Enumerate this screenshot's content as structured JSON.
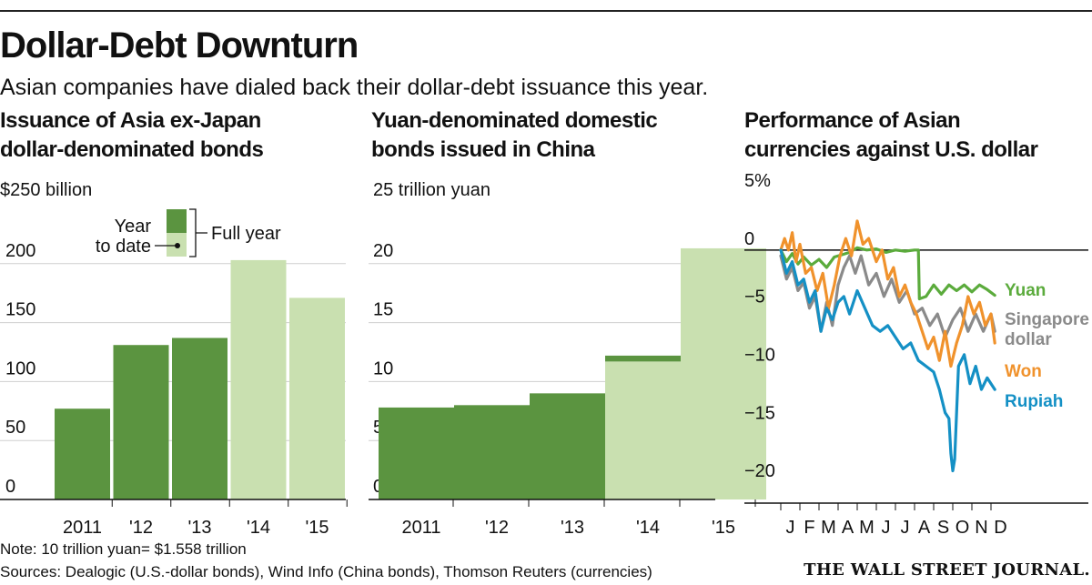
{
  "title": "Dollar-Debt Downturn",
  "subtitle": "Asian companies have dialed back their dollar-debt issuance this year.",
  "notes": {
    "note": "Note: 10 trillion yuan= $1.558 trillion",
    "sources": "Sources: Dealogic (U.S.-dollar bonds), Wind Info (China bonds), Thomson Reuters (currencies)",
    "publisher": "THE WALL STREET JOURNAL."
  },
  "colors": {
    "ytd": "#5b9440",
    "full": "#c9e0b0",
    "yuan": "#5bab3c",
    "won": "#f0922c",
    "sgd": "#8a8a8a",
    "rupiah": "#1490c5"
  },
  "chart_data": [
    {
      "type": "bar",
      "title": "Issuance of Asia ex-Japan dollar-denominated bonds",
      "title_lines": [
        "Issuance of Asia ex-Japan",
        "dollar-denominated bonds"
      ],
      "unit_label": "$250 billion",
      "ylim": [
        0,
        250
      ],
      "ytick_values": [
        0,
        50,
        100,
        150,
        200
      ],
      "ytick_labels": [
        "0",
        "50",
        "100",
        "150",
        "200"
      ],
      "categories": [
        "2011",
        "'12",
        "'13",
        "'14",
        "'15"
      ],
      "series": [
        {
          "name": "Year to date",
          "values": [
            77,
            131,
            137,
            null,
            null
          ]
        },
        {
          "name": "Full year",
          "values": [
            null,
            null,
            null,
            203,
            171
          ]
        }
      ],
      "legend": {
        "ytd_line1": "Year",
        "ytd_line2": "to date",
        "full": "Full year"
      }
    },
    {
      "type": "bar",
      "title": "Yuan-denominated domestic bonds issued in China",
      "title_lines": [
        "Yuan-denominated domestic",
        "bonds issued in China"
      ],
      "unit_label": "25 trillion yuan",
      "ylim": [
        0,
        25
      ],
      "ytick_values": [
        0,
        5,
        10,
        15,
        20
      ],
      "ytick_labels": [
        "0",
        "5",
        "10",
        "15",
        "20"
      ],
      "categories": [
        "2011",
        "'12",
        "'13",
        "'14",
        "'15"
      ],
      "series": [
        {
          "name": "Year to date",
          "values": [
            7.8,
            8.0,
            9.0,
            12.2,
            null
          ]
        },
        {
          "name": "Full year",
          "values": [
            null,
            null,
            null,
            11.7,
            21.3
          ]
        }
      ]
    },
    {
      "type": "line",
      "title": "Performance of Asian currencies against U.S. dollar",
      "title_lines": [
        "Performance of Asian",
        "currencies against U.S. dollar"
      ],
      "ylim": [
        -21,
        5
      ],
      "ytick_values": [
        5,
        0,
        -5,
        -10,
        -15,
        -20
      ],
      "ytick_labels": [
        "5%",
        "0",
        "−5",
        "−10",
        "−15",
        "−20"
      ],
      "x_months": [
        "J",
        "F",
        "M",
        "A",
        "M",
        "J",
        "J",
        "A",
        "S",
        "O",
        "N",
        "D"
      ],
      "xlim": [
        0,
        12
      ],
      "series": [
        {
          "name": "Yuan",
          "label_lines": [
            "Yuan"
          ],
          "color": "#5bab3c",
          "x": [
            0,
            0.3,
            0.6,
            0.9,
            1.2,
            1.6,
            2.0,
            2.4,
            2.8,
            3.2,
            3.6,
            4.0,
            4.5,
            5.0,
            5.5,
            6.0,
            6.5,
            7.0,
            7.2,
            7.25,
            7.6,
            8.0,
            8.4,
            8.8,
            9.2,
            9.6,
            10.0,
            10.4,
            10.8,
            11.2
          ],
          "y": [
            0,
            -1.0,
            -0.3,
            -1.2,
            -0.6,
            -1.3,
            -0.8,
            -1.5,
            -0.6,
            -0.4,
            -0.2,
            0.2,
            0,
            0.1,
            -0.2,
            0,
            -0.1,
            0,
            0,
            -4.2,
            -4.0,
            -3.0,
            -3.8,
            -3.0,
            -3.5,
            -3.0,
            -3.6,
            -3.0,
            -3.4,
            -3.9
          ]
        },
        {
          "name": "Singapore dollar",
          "label_lines": [
            "Singapore",
            "dollar"
          ],
          "color": "#8a8a8a",
          "x": [
            0,
            0.3,
            0.6,
            0.9,
            1.2,
            1.5,
            1.8,
            2.1,
            2.4,
            2.7,
            3.0,
            3.3,
            3.6,
            3.9,
            4.2,
            4.6,
            5.0,
            5.4,
            5.8,
            6.2,
            6.6,
            7.0,
            7.4,
            7.8,
            8.2,
            8.6,
            9.0,
            9.4,
            9.8,
            10.2,
            10.6,
            11.0,
            11.2
          ],
          "y": [
            -0.5,
            -2.5,
            -1.5,
            -3.5,
            -2.8,
            -5.0,
            -4.0,
            -7.0,
            -4.5,
            -6.5,
            -3.0,
            -1.5,
            -0.5,
            -2.0,
            -0.5,
            -3.0,
            -2.0,
            -4.0,
            -2.5,
            -4.5,
            -3.5,
            -5.5,
            -5.0,
            -6.5,
            -5.5,
            -7.5,
            -6.0,
            -5.0,
            -7.0,
            -5.5,
            -7.0,
            -5.5,
            -7.0
          ]
        },
        {
          "name": "Won",
          "label_lines": [
            "Won"
          ],
          "color": "#f0922c",
          "x": [
            0,
            0.2,
            0.4,
            0.6,
            0.8,
            1.0,
            1.3,
            1.6,
            1.9,
            2.2,
            2.5,
            2.8,
            3.1,
            3.4,
            3.7,
            4.0,
            4.3,
            4.6,
            5.0,
            5.3,
            5.6,
            5.9,
            6.2,
            6.5,
            6.8,
            7.1,
            7.4,
            7.7,
            8.0,
            8.3,
            8.6,
            8.9,
            9.2,
            9.5,
            9.8,
            10.1,
            10.4,
            10.7,
            11.0,
            11.2
          ],
          "y": [
            0,
            1.0,
            0,
            1.5,
            -1.0,
            0.5,
            -2.0,
            -1.5,
            -3.5,
            -2.0,
            -5.0,
            -3.0,
            -0.5,
            1.0,
            -0.5,
            2.5,
            0.5,
            1.0,
            -1.0,
            0,
            -2.5,
            -1.5,
            -4.0,
            -3.0,
            -4.5,
            -5.5,
            -7.0,
            -8.5,
            -7.5,
            -9.5,
            -7.0,
            -10.0,
            -8.0,
            -6.5,
            -4.0,
            -5.5,
            -4.5,
            -6.5,
            -5.5,
            -8.0
          ]
        },
        {
          "name": "Rupiah",
          "label_lines": [
            "Rupiah"
          ],
          "color": "#1490c5",
          "x": [
            0,
            0.3,
            0.6,
            0.9,
            1.2,
            1.5,
            1.8,
            2.1,
            2.4,
            2.7,
            3.0,
            3.3,
            3.6,
            4.0,
            4.4,
            4.8,
            5.2,
            5.6,
            6.0,
            6.4,
            6.8,
            7.2,
            7.6,
            8.0,
            8.3,
            8.6,
            8.8,
            8.9,
            9.0,
            9.1,
            9.3,
            9.6,
            9.9,
            10.2,
            10.5,
            10.8,
            11.0,
            11.2
          ],
          "y": [
            0,
            -2.0,
            -1.0,
            -3.0,
            -2.5,
            -4.5,
            -3.5,
            -7.0,
            -5.0,
            -6.0,
            -4.5,
            -4.0,
            -5.5,
            -3.5,
            -5.0,
            -6.5,
            -7.0,
            -6.5,
            -7.5,
            -8.5,
            -8.0,
            -9.5,
            -10.0,
            -10.5,
            -12.0,
            -14.0,
            -14.5,
            -17.5,
            -19.0,
            -18.0,
            -10.0,
            -9.0,
            -11.5,
            -10.0,
            -12.0,
            -11.0,
            -11.5,
            -12.0
          ]
        }
      ]
    }
  ]
}
